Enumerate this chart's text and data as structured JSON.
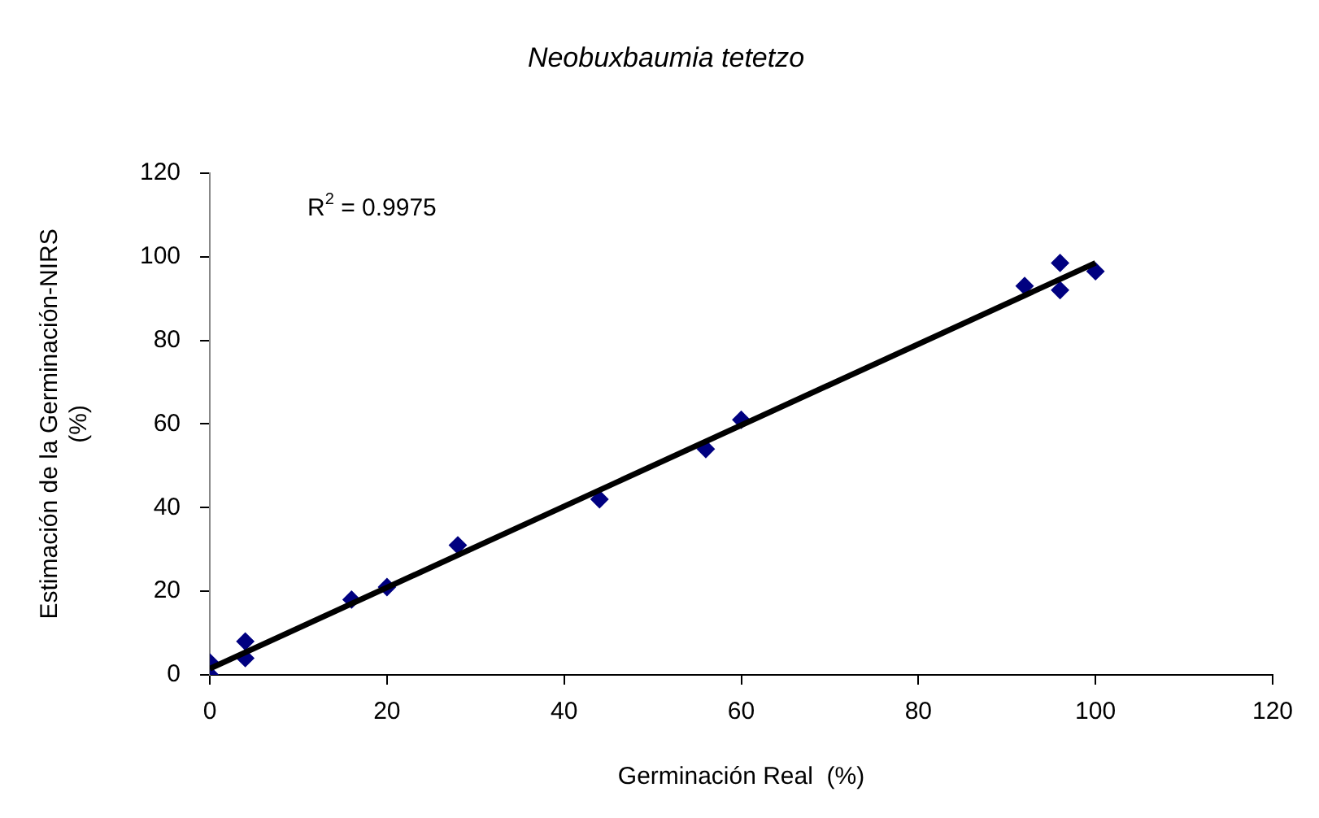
{
  "chart_data": {
    "type": "scatter",
    "title": "Neobuxbaumia tetetzo",
    "xlabel": "Germinación Real  (%)",
    "ylabel": "Estimación de la Germinación-NIRS (%)",
    "annotations": [
      "R$^{2}$ = 0.9975"
    ],
    "series": [
      {
        "type": "line",
        "color": "#000000",
        "marker": "none",
        "x": [
          0,
          100
        ],
        "values": [
          1.5,
          98.5
        ]
      },
      {
        "type": "scatter",
        "color": "#000080",
        "marker": "diamond",
        "x": [
          0,
          0,
          4,
          4,
          16,
          20,
          28,
          44,
          56,
          60,
          92,
          96,
          96,
          100
        ],
        "values": [
          0,
          3,
          4,
          8,
          18,
          21,
          31,
          42,
          54,
          61,
          93,
          98.5,
          92,
          96.5
        ]
      }
    ],
    "xlim": [
      0,
      120
    ],
    "xticks": [
      0,
      20,
      40,
      60,
      80,
      100,
      120
    ],
    "ylim": [
      0,
      120
    ],
    "yticks": [
      0,
      20,
      40,
      60,
      80,
      100,
      120
    ],
    "grid": false,
    "legend": false
  }
}
